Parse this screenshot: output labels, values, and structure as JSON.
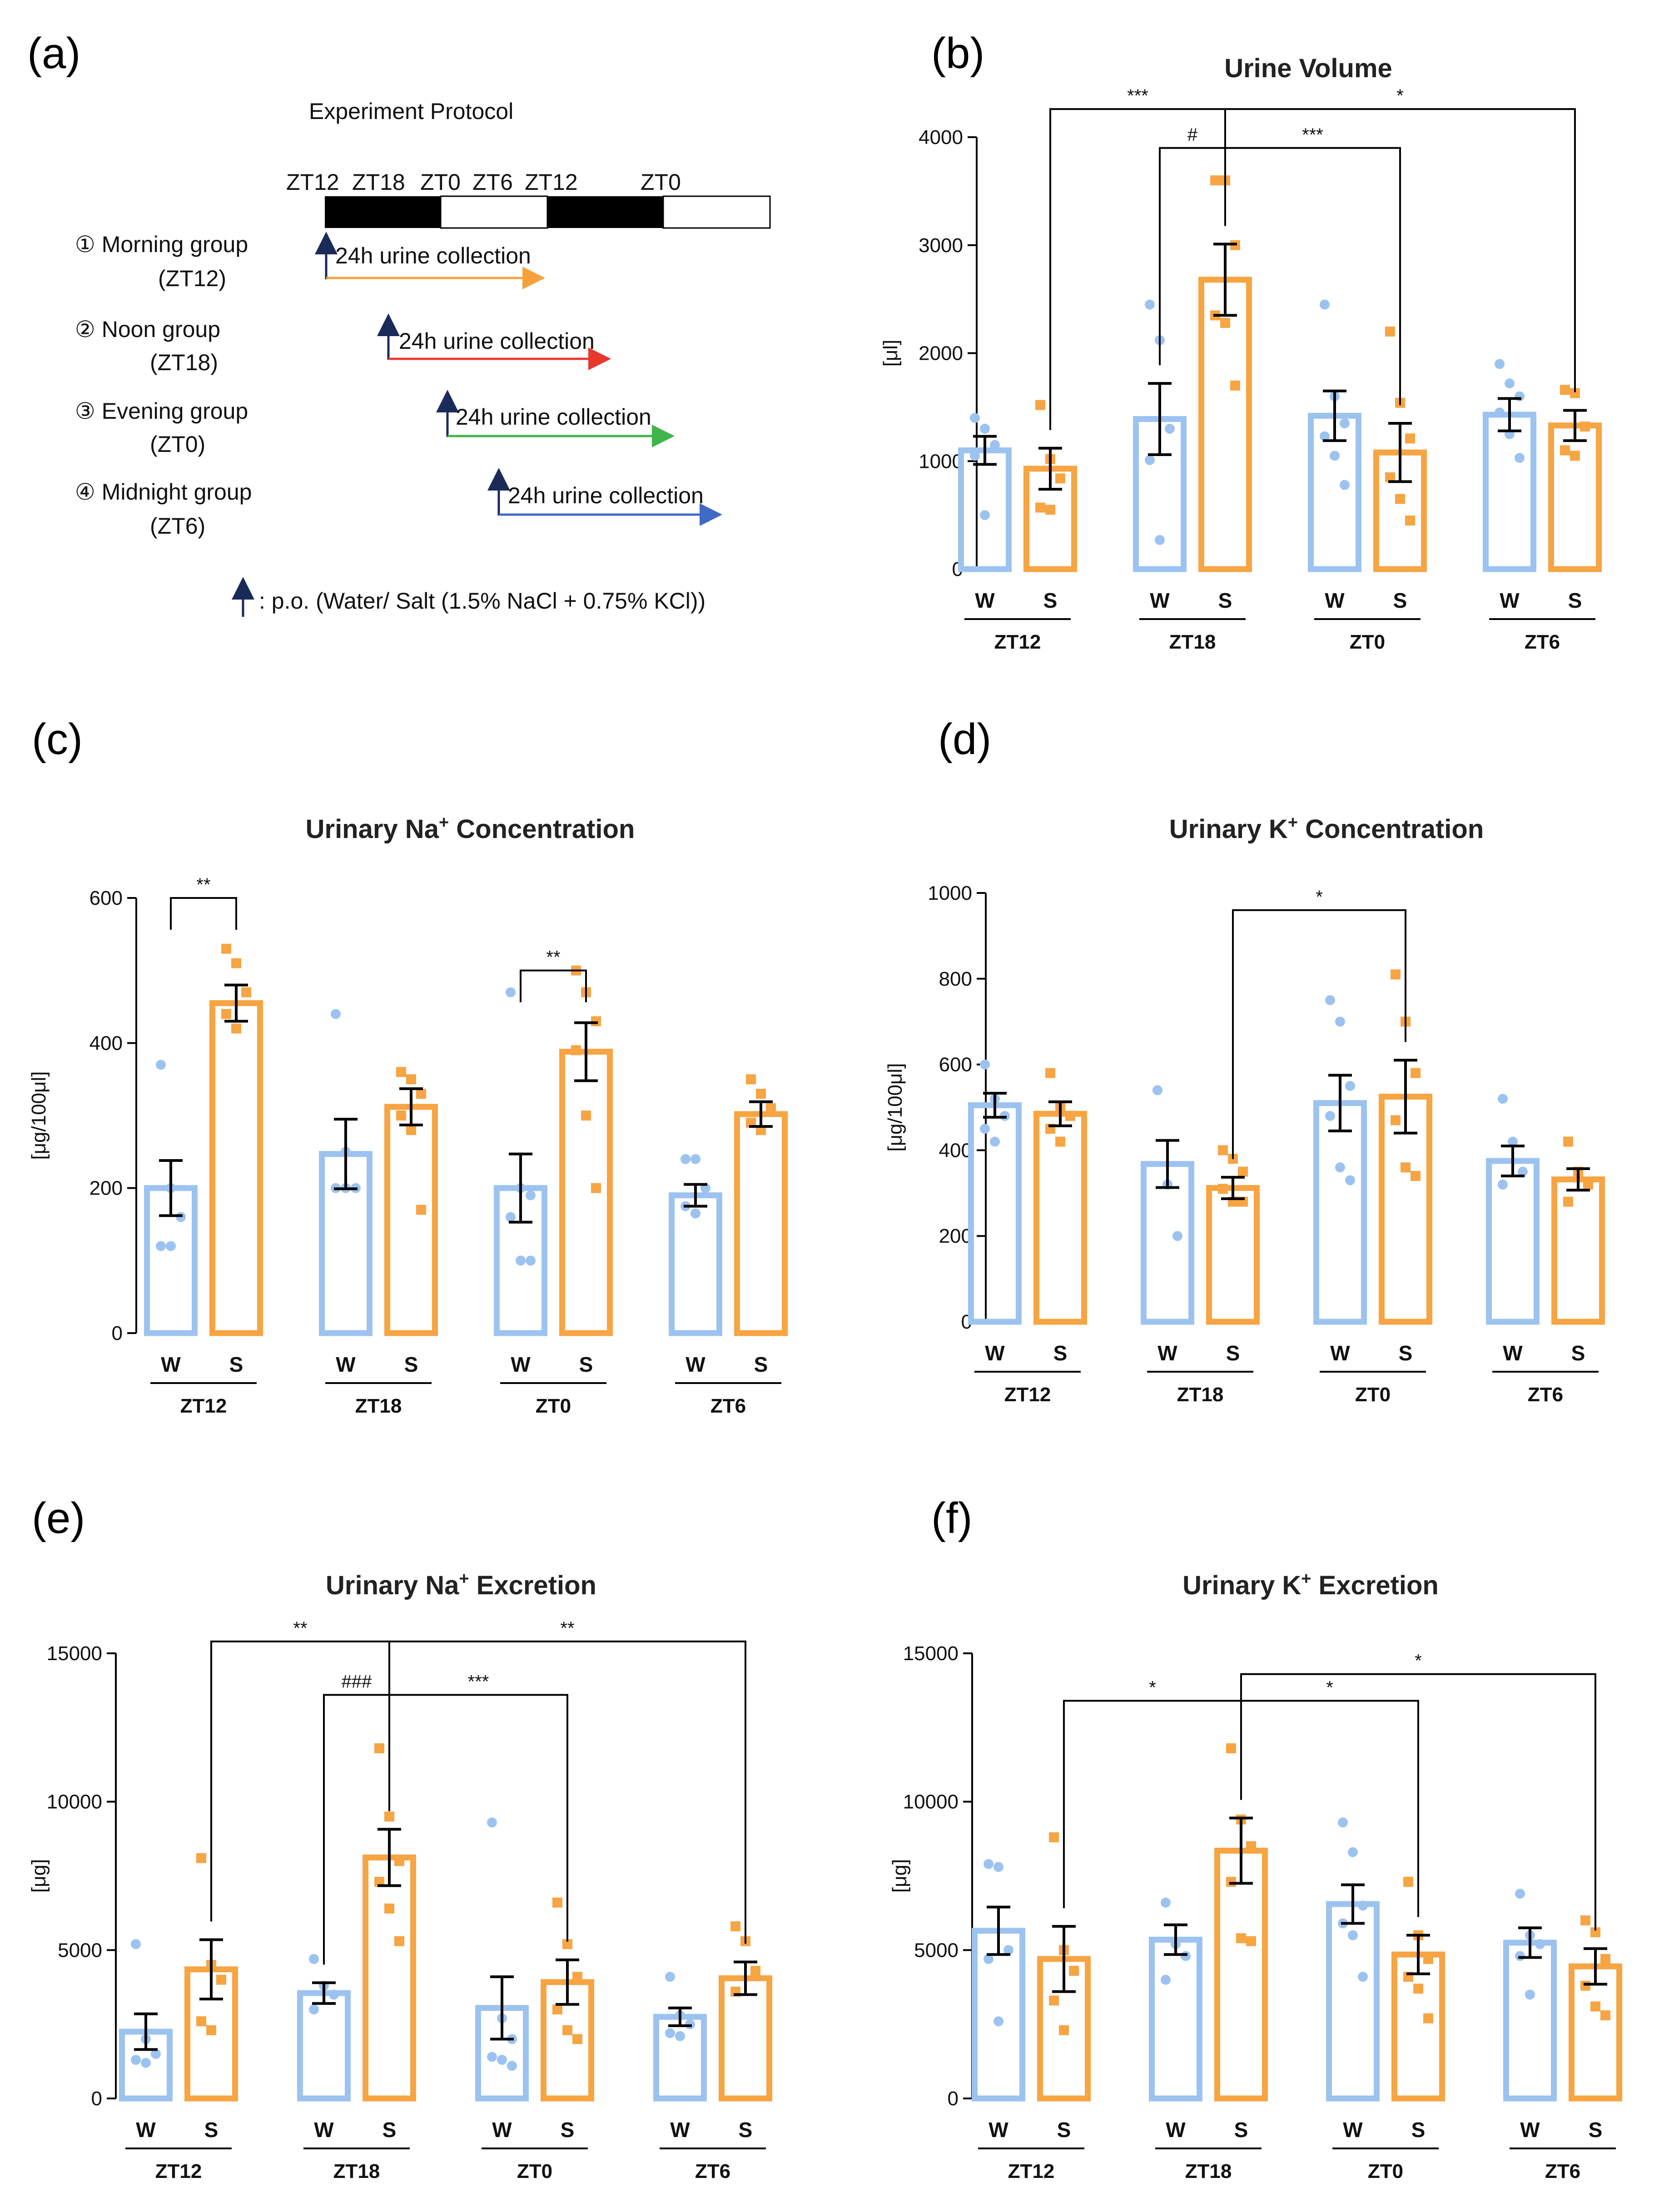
{
  "colors": {
    "water": "#9CC3F0",
    "salt": "#F7A443",
    "zt12_arrow": "#F5A13B",
    "zt18_arrow": "#E8372D",
    "zt0_arrow": "#3FB54A",
    "zt6_arrow": "#4069C8",
    "po_arrow": "#1A2B5A"
  },
  "protocol": {
    "letter": "(a)",
    "title": "Experiment Protocol",
    "timeline_labels": [
      "ZT12",
      "ZT18",
      "ZT0",
      "ZT6",
      "ZT12",
      "ZT0"
    ],
    "groups": [
      {
        "name": "① Morning group",
        "sub": "(ZT12)",
        "arrow_label": "24h  urine collection"
      },
      {
        "name": "② Noon group",
        "sub": "(ZT18)",
        "arrow_label": "24h  urine collection"
      },
      {
        "name": "③ Evening group",
        "sub": "(ZT0)",
        "arrow_label": "24h  urine collection"
      },
      {
        "name": "④ Midnight group",
        "sub": "(ZT6)",
        "arrow_label": "24h  urine collection"
      }
    ],
    "legend": ": p.o. (Water/ Salt (1.5% NaCl + 0.75% KCl))"
  },
  "chart_data": [
    {
      "id": "b",
      "letter": "(b)",
      "type": "bar",
      "title": "Urine Volume",
      "title_ion": "",
      "title_rest": "",
      "ylabel": "[μl]",
      "ylim": [
        0,
        4000
      ],
      "yticks": [
        "0",
        "1000",
        "2000",
        "3000",
        "4000"
      ],
      "tick_values": [
        0,
        1000,
        2000,
        3000,
        4000
      ],
      "groups": [
        "ZT12",
        "ZT18",
        "ZT0",
        "ZT6"
      ],
      "bar_labels": [
        "W",
        "S"
      ],
      "series": [
        {
          "name": "W",
          "means": [
            1100,
            1390,
            1420,
            1430
          ],
          "sem": [
            130,
            330,
            230,
            150
          ],
          "points": [
            [
              1400,
              1300,
              1150,
              1050,
              500
            ],
            [
              2450,
              2120,
              1300,
              1010,
              270
            ],
            [
              2450,
              1600,
              1350,
              1230,
              1050,
              780
            ],
            [
              1900,
              1720,
              1600,
              1450,
              1250,
              1030
            ]
          ]
        },
        {
          "name": "S",
          "means": [
            930,
            2680,
            1080,
            1330
          ],
          "sem": [
            190,
            330,
            270,
            140
          ],
          "points": [
            [
              1520,
              1020,
              840,
              570,
              550
            ],
            [
              3600,
              3600,
              3000,
              2350,
              2280,
              1700
            ],
            [
              2200,
              1540,
              1210,
              850,
              650,
              450
            ],
            [
              1660,
              1630,
              1320,
              1100,
              1050
            ]
          ]
        }
      ],
      "brackets": [
        {
          "from": [
            0,
            1
          ],
          "to": [
            1,
            1
          ],
          "label": "***",
          "y": 4260,
          "up": true
        },
        {
          "from": [
            1,
            1
          ],
          "to": [
            3,
            1
          ],
          "label": "*",
          "y": 4260,
          "up": true
        },
        {
          "from": [
            1,
            0
          ],
          "to": [
            1,
            1
          ],
          "label": "#",
          "y": 3900,
          "up": true
        },
        {
          "from": [
            1,
            1
          ],
          "to": [
            2,
            1
          ],
          "label": "***",
          "y": 3900,
          "up": true
        }
      ]
    },
    {
      "id": "c",
      "letter": "(c)",
      "type": "bar",
      "title": "Urinary Na",
      "title_ion": "+",
      "title_rest": " Concentration",
      "ylabel": "[μg/100μl]",
      "ylim": [
        0,
        600
      ],
      "yticks": [
        "0",
        "200",
        "400",
        "600"
      ],
      "tick_values": [
        0,
        200,
        400,
        600
      ],
      "groups": [
        "ZT12",
        "ZT18",
        "ZT0",
        "ZT6"
      ],
      "bar_labels": [
        "W",
        "S"
      ],
      "series": [
        {
          "name": "W",
          "means": [
            200,
            247,
            200,
            190
          ],
          "sem": [
            38,
            48,
            47,
            15
          ],
          "points": [
            [
              370,
              200,
              160,
              120,
              120
            ],
            [
              440,
              250,
              200,
              200,
              200
            ],
            [
              470,
              200,
              190,
              160,
              100,
              100
            ],
            [
              240,
              240,
              200,
              175,
              165
            ]
          ]
        },
        {
          "name": "S",
          "means": [
            455,
            312,
            388,
            302
          ],
          "sem": [
            25,
            25,
            40,
            17
          ],
          "points": [
            [
              530,
              510,
              470,
              440,
              420
            ],
            [
              360,
              350,
              330,
              300,
              280,
              170
            ],
            [
              500,
              470,
              430,
              390,
              300,
              200
            ],
            [
              350,
              330,
              310,
              290,
              280
            ]
          ]
        }
      ],
      "brackets": [
        {
          "from": [
            0,
            0
          ],
          "to": [
            0,
            1
          ],
          "label": "**",
          "y": 600,
          "up": false
        },
        {
          "from": [
            2,
            0
          ],
          "to": [
            2,
            1
          ],
          "label": "**",
          "y": 500,
          "up": false
        }
      ]
    },
    {
      "id": "d",
      "letter": "(d)",
      "type": "bar",
      "title": "Urinary K",
      "title_ion": "+",
      "title_rest": " Concentration",
      "ylabel": "[μg/100μl]",
      "ylim": [
        0,
        1000
      ],
      "yticks": [
        "0",
        "200",
        "400",
        "600",
        "800",
        "1000"
      ],
      "tick_values": [
        0,
        200,
        400,
        600,
        800,
        1000
      ],
      "groups": [
        "ZT12",
        "ZT18",
        "ZT0",
        "ZT6"
      ],
      "bar_labels": [
        "W",
        "S"
      ],
      "series": [
        {
          "name": "W",
          "means": [
            505,
            368,
            510,
            375
          ],
          "sem": [
            28,
            55,
            65,
            35
          ],
          "points": [
            [
              600,
              520,
              480,
              450,
              420
            ],
            [
              540,
              320,
              200
            ],
            [
              750,
              700,
              550,
              480,
              360,
              330
            ],
            [
              520,
              420,
              350,
              320
            ]
          ]
        },
        {
          "name": "S",
          "means": [
            485,
            312,
            525,
            332
          ],
          "sem": [
            28,
            25,
            85,
            25
          ],
          "points": [
            [
              580,
              500,
              480,
              450,
              420
            ],
            [
              400,
              380,
              350,
              310,
              280,
              280
            ],
            [
              810,
              700,
              580,
              470,
              360,
              340
            ],
            [
              420,
              350,
              320,
              280
            ]
          ]
        }
      ],
      "brackets": [
        {
          "from": [
            1,
            1
          ],
          "to": [
            2,
            1
          ],
          "label": "*",
          "y": 960,
          "up": true
        }
      ]
    },
    {
      "id": "e",
      "letter": "(e)",
      "type": "bar",
      "title": "Urinary Na",
      "title_ion": "+",
      "title_rest": " Excretion",
      "ylabel": "[μg]",
      "ylim": [
        0,
        15000
      ],
      "yticks": [
        "0",
        "5000",
        "10000",
        "15000"
      ],
      "tick_values": [
        0,
        5000,
        10000,
        15000
      ],
      "groups": [
        "ZT12",
        "ZT18",
        "ZT0",
        "ZT6"
      ],
      "bar_labels": [
        "W",
        "S"
      ],
      "series": [
        {
          "name": "W",
          "means": [
            2250,
            3550,
            3050,
            2750
          ],
          "sem": [
            600,
            350,
            1050,
            300
          ],
          "points": [
            [
              5200,
              2000,
              1500,
              1300,
              1200
            ],
            [
              4700,
              3800,
              3500,
              3000
            ],
            [
              9300,
              2700,
              2000,
              1400,
              1300,
              1100
            ],
            [
              4100,
              2800,
              2500,
              2200,
              2100
            ]
          ]
        },
        {
          "name": "S",
          "means": [
            4350,
            8120,
            3920,
            4050
          ],
          "sem": [
            1000,
            950,
            750,
            550
          ],
          "points": [
            [
              8100,
              4500,
              4000,
              2600,
              2300
            ],
            [
              11800,
              9500,
              8000,
              7300,
              6400,
              5300
            ],
            [
              6600,
              5200,
              4100,
              3000,
              2300,
              2000
            ],
            [
              5800,
              5300,
              4300,
              3600
            ]
          ]
        }
      ],
      "brackets": [
        {
          "from": [
            0,
            1
          ],
          "to": [
            1,
            1
          ],
          "label": "**",
          "y": 15400,
          "up": true
        },
        {
          "from": [
            1,
            1
          ],
          "to": [
            3,
            1
          ],
          "label": "**",
          "y": 15400,
          "up": true
        },
        {
          "from": [
            1,
            0
          ],
          "to": [
            1,
            1
          ],
          "label": "###",
          "y": 13600,
          "up": true
        },
        {
          "from": [
            1,
            1
          ],
          "to": [
            2,
            1
          ],
          "label": "***",
          "y": 13600,
          "up": true
        }
      ]
    },
    {
      "id": "f",
      "letter": "(f)",
      "type": "bar",
      "title": "Urinary K",
      "title_ion": "+",
      "title_rest": " Excretion",
      "ylabel": "[μg]",
      "ylim": [
        0,
        15000
      ],
      "yticks": [
        "0",
        "5000",
        "10000",
        "15000"
      ],
      "tick_values": [
        0,
        5000,
        10000,
        15000
      ],
      "groups": [
        "ZT12",
        "ZT18",
        "ZT0",
        "ZT6"
      ],
      "bar_labels": [
        "W",
        "S"
      ],
      "series": [
        {
          "name": "W",
          "means": [
            5650,
            5350,
            6550,
            5250
          ],
          "sem": [
            800,
            500,
            650,
            500
          ],
          "points": [
            [
              7900,
              7800,
              5000,
              4700,
              2600
            ],
            [
              6600,
              5200,
              4800,
              4000
            ],
            [
              9300,
              8300,
              6500,
              5900,
              5500,
              4100
            ],
            [
              6900,
              5500,
              5200,
              4800,
              3500
            ]
          ]
        },
        {
          "name": "S",
          "means": [
            4700,
            8350,
            4850,
            4450
          ],
          "sem": [
            1100,
            1100,
            650,
            600
          ],
          "points": [
            [
              8800,
              5000,
              4300,
              3300,
              2300
            ],
            [
              11800,
              9400,
              8500,
              7300,
              5400,
              5300
            ],
            [
              7300,
              5500,
              4700,
              4100,
              3700,
              2700
            ],
            [
              6000,
              5600,
              4700,
              3800,
              3100,
              2800
            ]
          ]
        }
      ],
      "brackets": [
        {
          "from": [
            0,
            1
          ],
          "to": [
            1,
            1
          ],
          "label": "*",
          "y": 13400,
          "up": true
        },
        {
          "from": [
            1,
            1
          ],
          "to": [
            3,
            1
          ],
          "label": "*",
          "y": 14300,
          "up": true
        },
        {
          "from": [
            1,
            1
          ],
          "to": [
            2,
            1
          ],
          "label": "*",
          "y": 13400,
          "up": true
        }
      ]
    }
  ]
}
